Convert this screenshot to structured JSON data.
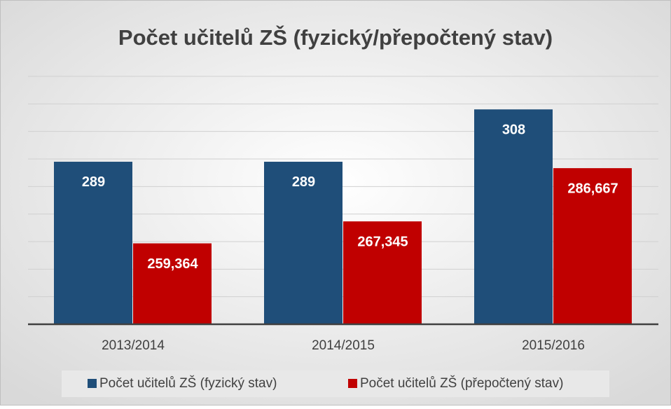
{
  "chart_data": {
    "type": "bar",
    "title": "Počet učitelů ZŠ (fyzický/přepočtený stav)",
    "categories": [
      "2013/2014",
      "2014/2015",
      "2015/2016"
    ],
    "series": [
      {
        "name": "Počet učitelů ZŠ (fyzický stav)",
        "color": "#1f4e79",
        "values": [
          289,
          289,
          308
        ],
        "value_labels": [
          "289",
          "289",
          "308"
        ]
      },
      {
        "name": "Počet učitelů ZŠ (přepočtený stav)",
        "color": "#c00000",
        "values": [
          259.364,
          267.345,
          286.667
        ],
        "value_labels": [
          "259,364",
          "267,345",
          "286,667"
        ]
      }
    ],
    "ylim": [
      230,
      320
    ],
    "yticks": [
      230,
      240,
      250,
      260,
      270,
      280,
      290,
      300,
      310,
      320
    ],
    "grid": true,
    "legend": "bottom"
  }
}
